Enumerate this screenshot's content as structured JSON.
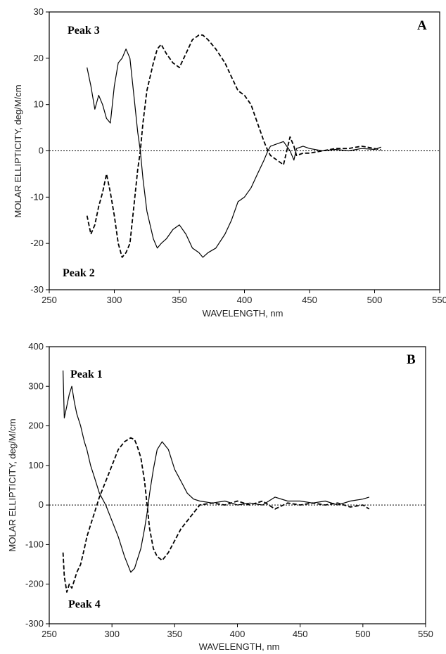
{
  "chart_data": [
    {
      "type": "line",
      "panel_label": "A",
      "xlabel": "WAVELENGTH, nm",
      "ylabel": "MOLAR ELLIPTICITY, deg/M/cm",
      "xlim": [
        250,
        550
      ],
      "ylim": [
        -30,
        30
      ],
      "xticks": [
        "250",
        "300",
        "350",
        "400",
        "450",
        "500",
        "550"
      ],
      "yticks": [
        "-30",
        "-20",
        "-10",
        "0",
        "10",
        "20",
        "30"
      ],
      "zero_line": "dotted",
      "series": [
        {
          "name": "Peak 3",
          "style": "solid",
          "x": [
            279,
            282,
            285,
            288,
            291,
            294,
            297,
            300,
            303,
            306,
            309,
            312,
            315,
            318,
            320,
            322,
            325,
            330,
            333,
            336,
            340,
            345,
            350,
            355,
            360,
            365,
            368,
            372,
            378,
            385,
            390,
            395,
            400,
            405,
            410,
            415,
            418,
            420,
            425,
            430,
            435,
            438,
            440,
            445,
            450,
            460,
            470,
            480,
            490,
            500,
            505
          ],
          "y": [
            18,
            14,
            9,
            12,
            10,
            7,
            6,
            14,
            19,
            20,
            22,
            20,
            12,
            4,
            0,
            -6,
            -13,
            -19,
            -21,
            -20,
            -19,
            -17,
            -16,
            -18,
            -21,
            -22,
            -23,
            -22,
            -21,
            -18,
            -15,
            -11,
            -10,
            -8,
            -5,
            -2,
            0,
            1,
            1.5,
            2,
            0,
            -2,
            0.5,
            1,
            0.5,
            0,
            0.3,
            0,
            0.5,
            0.3,
            0.8
          ]
        },
        {
          "name": "Peak 2",
          "style": "dashed",
          "x": [
            279,
            282,
            285,
            288,
            291,
            294,
            297,
            300,
            303,
            306,
            309,
            312,
            315,
            318,
            320,
            322,
            325,
            330,
            333,
            336,
            340,
            345,
            350,
            355,
            360,
            365,
            368,
            372,
            378,
            385,
            390,
            395,
            400,
            405,
            410,
            415,
            418,
            420,
            425,
            430,
            435,
            438,
            440,
            445,
            450,
            460,
            470,
            480,
            490,
            500,
            505
          ],
          "y": [
            -14,
            -18,
            -16,
            -12,
            -9,
            -5,
            -9,
            -14,
            -20,
            -23,
            -22,
            -20,
            -12,
            -4,
            0,
            6,
            13,
            19,
            22,
            23,
            21,
            19,
            18,
            21,
            24,
            25,
            25,
            24,
            22,
            19,
            16,
            13,
            12,
            10,
            6,
            2,
            0,
            -1,
            -2,
            -3,
            3,
            1,
            -1,
            -0.5,
            -0.5,
            0,
            0.5,
            0.5,
            1,
            0.5,
            0.2
          ]
        }
      ]
    },
    {
      "type": "line",
      "panel_label": "B",
      "xlabel": "WAVELENGTH, nm",
      "ylabel": "MOLAR ELLIPTICITY, deg/M/cm",
      "xlim": [
        250,
        550
      ],
      "ylim": [
        -300,
        400
      ],
      "xticks": [
        "250",
        "300",
        "350",
        "400",
        "450",
        "500",
        "550"
      ],
      "yticks": [
        "-300",
        "-200",
        "-100",
        "0",
        "100",
        "200",
        "300",
        "400"
      ],
      "zero_line": "dotted",
      "series": [
        {
          "name": "Peak 1",
          "style": "solid",
          "x": [
            261,
            262,
            264,
            266,
            268,
            270,
            272,
            275,
            278,
            280,
            283,
            286,
            290,
            295,
            300,
            305,
            310,
            315,
            318,
            320,
            323,
            326,
            328,
            330,
            333,
            336,
            340,
            345,
            350,
            355,
            360,
            365,
            370,
            380,
            390,
            400,
            410,
            420,
            430,
            440,
            450,
            460,
            470,
            480,
            490,
            500,
            505
          ],
          "y": [
            340,
            220,
            250,
            280,
            300,
            260,
            230,
            200,
            160,
            140,
            100,
            70,
            30,
            0,
            -40,
            -80,
            -130,
            -170,
            -160,
            -140,
            -110,
            -60,
            -20,
            30,
            90,
            140,
            160,
            140,
            90,
            60,
            30,
            15,
            10,
            5,
            10,
            0,
            5,
            0,
            20,
            10,
            10,
            5,
            10,
            0,
            10,
            15,
            20
          ]
        },
        {
          "name": "Peak 4",
          "style": "dashed",
          "x": [
            261,
            262,
            264,
            266,
            268,
            270,
            272,
            275,
            278,
            280,
            283,
            286,
            290,
            295,
            300,
            305,
            310,
            315,
            318,
            320,
            323,
            326,
            328,
            330,
            333,
            336,
            340,
            345,
            350,
            355,
            360,
            365,
            370,
            380,
            390,
            400,
            410,
            420,
            430,
            440,
            450,
            460,
            470,
            480,
            490,
            500,
            505
          ],
          "y": [
            -120,
            -180,
            -220,
            -200,
            -210,
            -190,
            -170,
            -150,
            -110,
            -80,
            -50,
            -20,
            20,
            60,
            100,
            140,
            160,
            170,
            165,
            150,
            120,
            60,
            0,
            -60,
            -110,
            -130,
            -140,
            -120,
            -90,
            -60,
            -40,
            -20,
            0,
            5,
            0,
            10,
            0,
            10,
            -10,
            5,
            0,
            5,
            0,
            5,
            -5,
            0,
            -10
          ]
        }
      ]
    }
  ]
}
